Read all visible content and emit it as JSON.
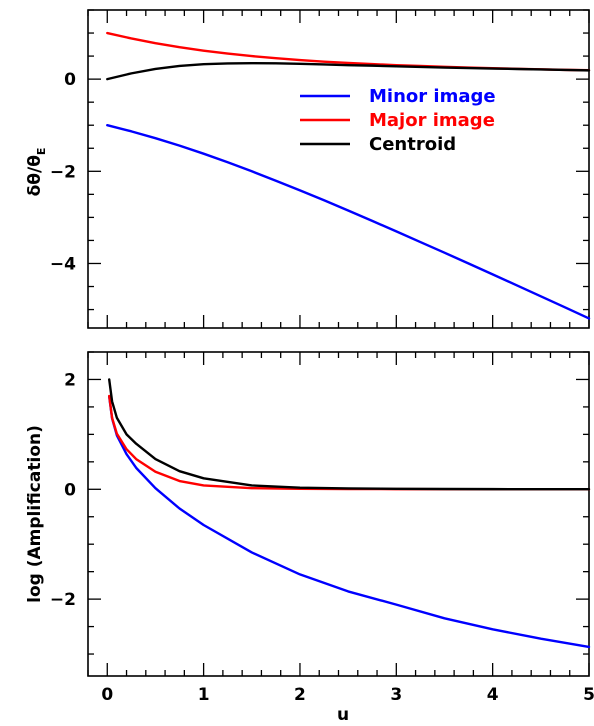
{
  "chart_data": [
    {
      "type": "line",
      "ylabel": "δθ/θ",
      "ylabel_subscript": "E",
      "xlim": [
        -0.2,
        5
      ],
      "ylim": [
        -5.4,
        1.5
      ],
      "xticks": [
        "0",
        "1",
        "2",
        "3",
        "4",
        "5"
      ],
      "yticks": [
        {
          "value": 0,
          "label": "0"
        },
        {
          "value": -2,
          "label": "−2"
        },
        {
          "value": -4,
          "label": "−4"
        }
      ],
      "legend_position": "top-right",
      "series": [
        {
          "name": "Minor image",
          "color": "#0000ff",
          "x": [
            0,
            0.25,
            0.5,
            0.75,
            1,
            1.25,
            1.5,
            1.75,
            2,
            2.25,
            2.5,
            2.75,
            3,
            3.25,
            3.5,
            3.75,
            4,
            4.25,
            4.5,
            4.75,
            5
          ],
          "y": [
            -1,
            -1.133,
            -1.281,
            -1.443,
            -1.618,
            -1.804,
            -2,
            -2.204,
            -2.414,
            -2.629,
            -2.851,
            -3.076,
            -3.303,
            -3.535,
            -3.766,
            -4.001,
            -4.236,
            -4.474,
            -4.712,
            -4.951,
            -5.193
          ]
        },
        {
          "name": "Major image",
          "color": "#ff0000",
          "x": [
            0,
            0.25,
            0.5,
            0.75,
            1,
            1.25,
            1.5,
            1.75,
            2,
            2.25,
            2.5,
            2.75,
            3,
            3.25,
            3.5,
            3.75,
            4,
            4.25,
            4.5,
            4.75,
            5
          ],
          "y": [
            1,
            0.883,
            0.781,
            0.693,
            0.618,
            0.554,
            0.5,
            0.454,
            0.414,
            0.379,
            0.351,
            0.326,
            0.303,
            0.285,
            0.266,
            0.251,
            0.236,
            0.224,
            0.212,
            0.201,
            0.193
          ]
        },
        {
          "name": "Centroid",
          "color": "#000000",
          "x": [
            0,
            0.25,
            0.5,
            0.75,
            1,
            1.25,
            1.5,
            1.75,
            2,
            2.25,
            2.5,
            2.75,
            3,
            3.25,
            3.5,
            3.75,
            4,
            4.25,
            4.5,
            4.75,
            5
          ],
          "y": [
            0,
            0.125,
            0.222,
            0.286,
            0.324,
            0.34,
            0.346,
            0.343,
            0.333,
            0.319,
            0.303,
            0.293,
            0.277,
            0.265,
            0.25,
            0.24,
            0.23,
            0.22,
            0.21,
            0.2,
            0.19
          ]
        }
      ]
    },
    {
      "type": "line",
      "xlabel": "u",
      "ylabel": "log (Amplification)",
      "xlim": [
        -0.2,
        5
      ],
      "ylim": [
        -3.4,
        2.5
      ],
      "xticks": [
        "0",
        "1",
        "2",
        "3",
        "4",
        "5"
      ],
      "yticks": [
        {
          "value": 2,
          "label": "2"
        },
        {
          "value": 0,
          "label": "0"
        },
        {
          "value": -2,
          "label": "−2"
        }
      ],
      "series": [
        {
          "name": "Minor image",
          "color": "#0000ff",
          "x": [
            0.02,
            0.05,
            0.1,
            0.2,
            0.3,
            0.5,
            0.75,
            1,
            1.5,
            2,
            2.5,
            3,
            3.5,
            4,
            4.5,
            5
          ],
          "y": [
            1.69,
            1.29,
            0.98,
            0.64,
            0.39,
            0.02,
            -0.35,
            -0.65,
            -1.15,
            -1.55,
            -1.86,
            -2.1,
            -2.35,
            -2.55,
            -2.72,
            -2.87
          ]
        },
        {
          "name": "Major image",
          "color": "#ff0000",
          "x": [
            0.02,
            0.05,
            0.1,
            0.2,
            0.3,
            0.5,
            0.75,
            1,
            1.5,
            2,
            2.5,
            3,
            3.5,
            4,
            4.5,
            5
          ],
          "y": [
            1.7,
            1.3,
            1.01,
            0.73,
            0.55,
            0.32,
            0.15,
            0.07,
            0.02,
            0.01,
            0.005,
            0.003,
            0.002,
            0.001,
            0.001,
            0.001
          ]
        },
        {
          "name": "Centroid",
          "color": "#000000",
          "x": [
            0.02,
            0.05,
            0.1,
            0.2,
            0.3,
            0.5,
            0.75,
            1,
            1.5,
            2,
            2.5,
            3,
            3.5,
            4,
            4.5,
            5
          ],
          "y": [
            2.0,
            1.6,
            1.3,
            1.0,
            0.83,
            0.55,
            0.33,
            0.2,
            0.07,
            0.03,
            0.015,
            0.008,
            0.005,
            0.003,
            0.002,
            0.002
          ]
        }
      ]
    }
  ]
}
